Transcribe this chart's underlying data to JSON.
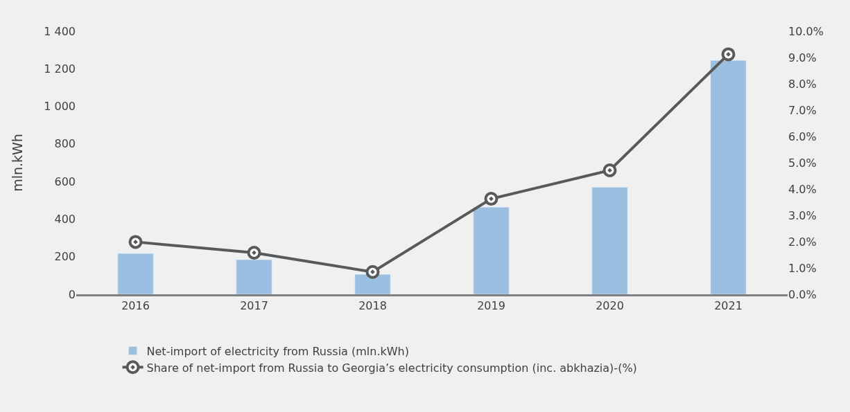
{
  "chart_data": {
    "type": "bar",
    "ylabel": "mln.kWh",
    "categories": [
      "2016",
      "2017",
      "2018",
      "2019",
      "2020",
      "2021"
    ],
    "series": [
      {
        "name": "Net-import of electricity from Russia (mln.kWh)",
        "color": "#9bbfe0",
        "values": [
          217,
          184,
          106,
          463,
          569,
          1244
        ]
      },
      {
        "name": "Share of net-import from Russia to Georgia’s electricity consumption (inc. abkhazia)-(%)",
        "type": "line",
        "axis": "y2",
        "color": "#58595b",
        "marker": "circle",
        "values": [
          1.99,
          1.58,
          0.85,
          3.63,
          4.71,
          9.12
        ]
      }
    ],
    "ylim": [
      0,
      1400
    ],
    "yticks": [
      0,
      200,
      400,
      600,
      800,
      {
        "value": 1000,
        "label": "1 000"
      },
      {
        "value": 1200,
        "label": "1 200"
      },
      {
        "value": 1400,
        "label": "1 400"
      }
    ],
    "y2lim": [
      0,
      10
    ],
    "y2ticks": [
      {
        "value": 0,
        "label": "0.0%"
      },
      {
        "value": 1,
        "label": "1.0%"
      },
      {
        "value": 2,
        "label": "2.0%"
      },
      {
        "value": 3,
        "label": "3.0%"
      },
      {
        "value": 4,
        "label": "4.0%"
      },
      {
        "value": 5,
        "label": "5.0%"
      },
      {
        "value": 6,
        "label": "6.0%"
      },
      {
        "value": 7,
        "label": "7.0%"
      },
      {
        "value": 8,
        "label": "8.0%"
      },
      {
        "value": 9,
        "label": "9.0%"
      },
      {
        "value": 10,
        "label": "10.0%"
      }
    ],
    "grid": false,
    "legend": "bottom"
  }
}
